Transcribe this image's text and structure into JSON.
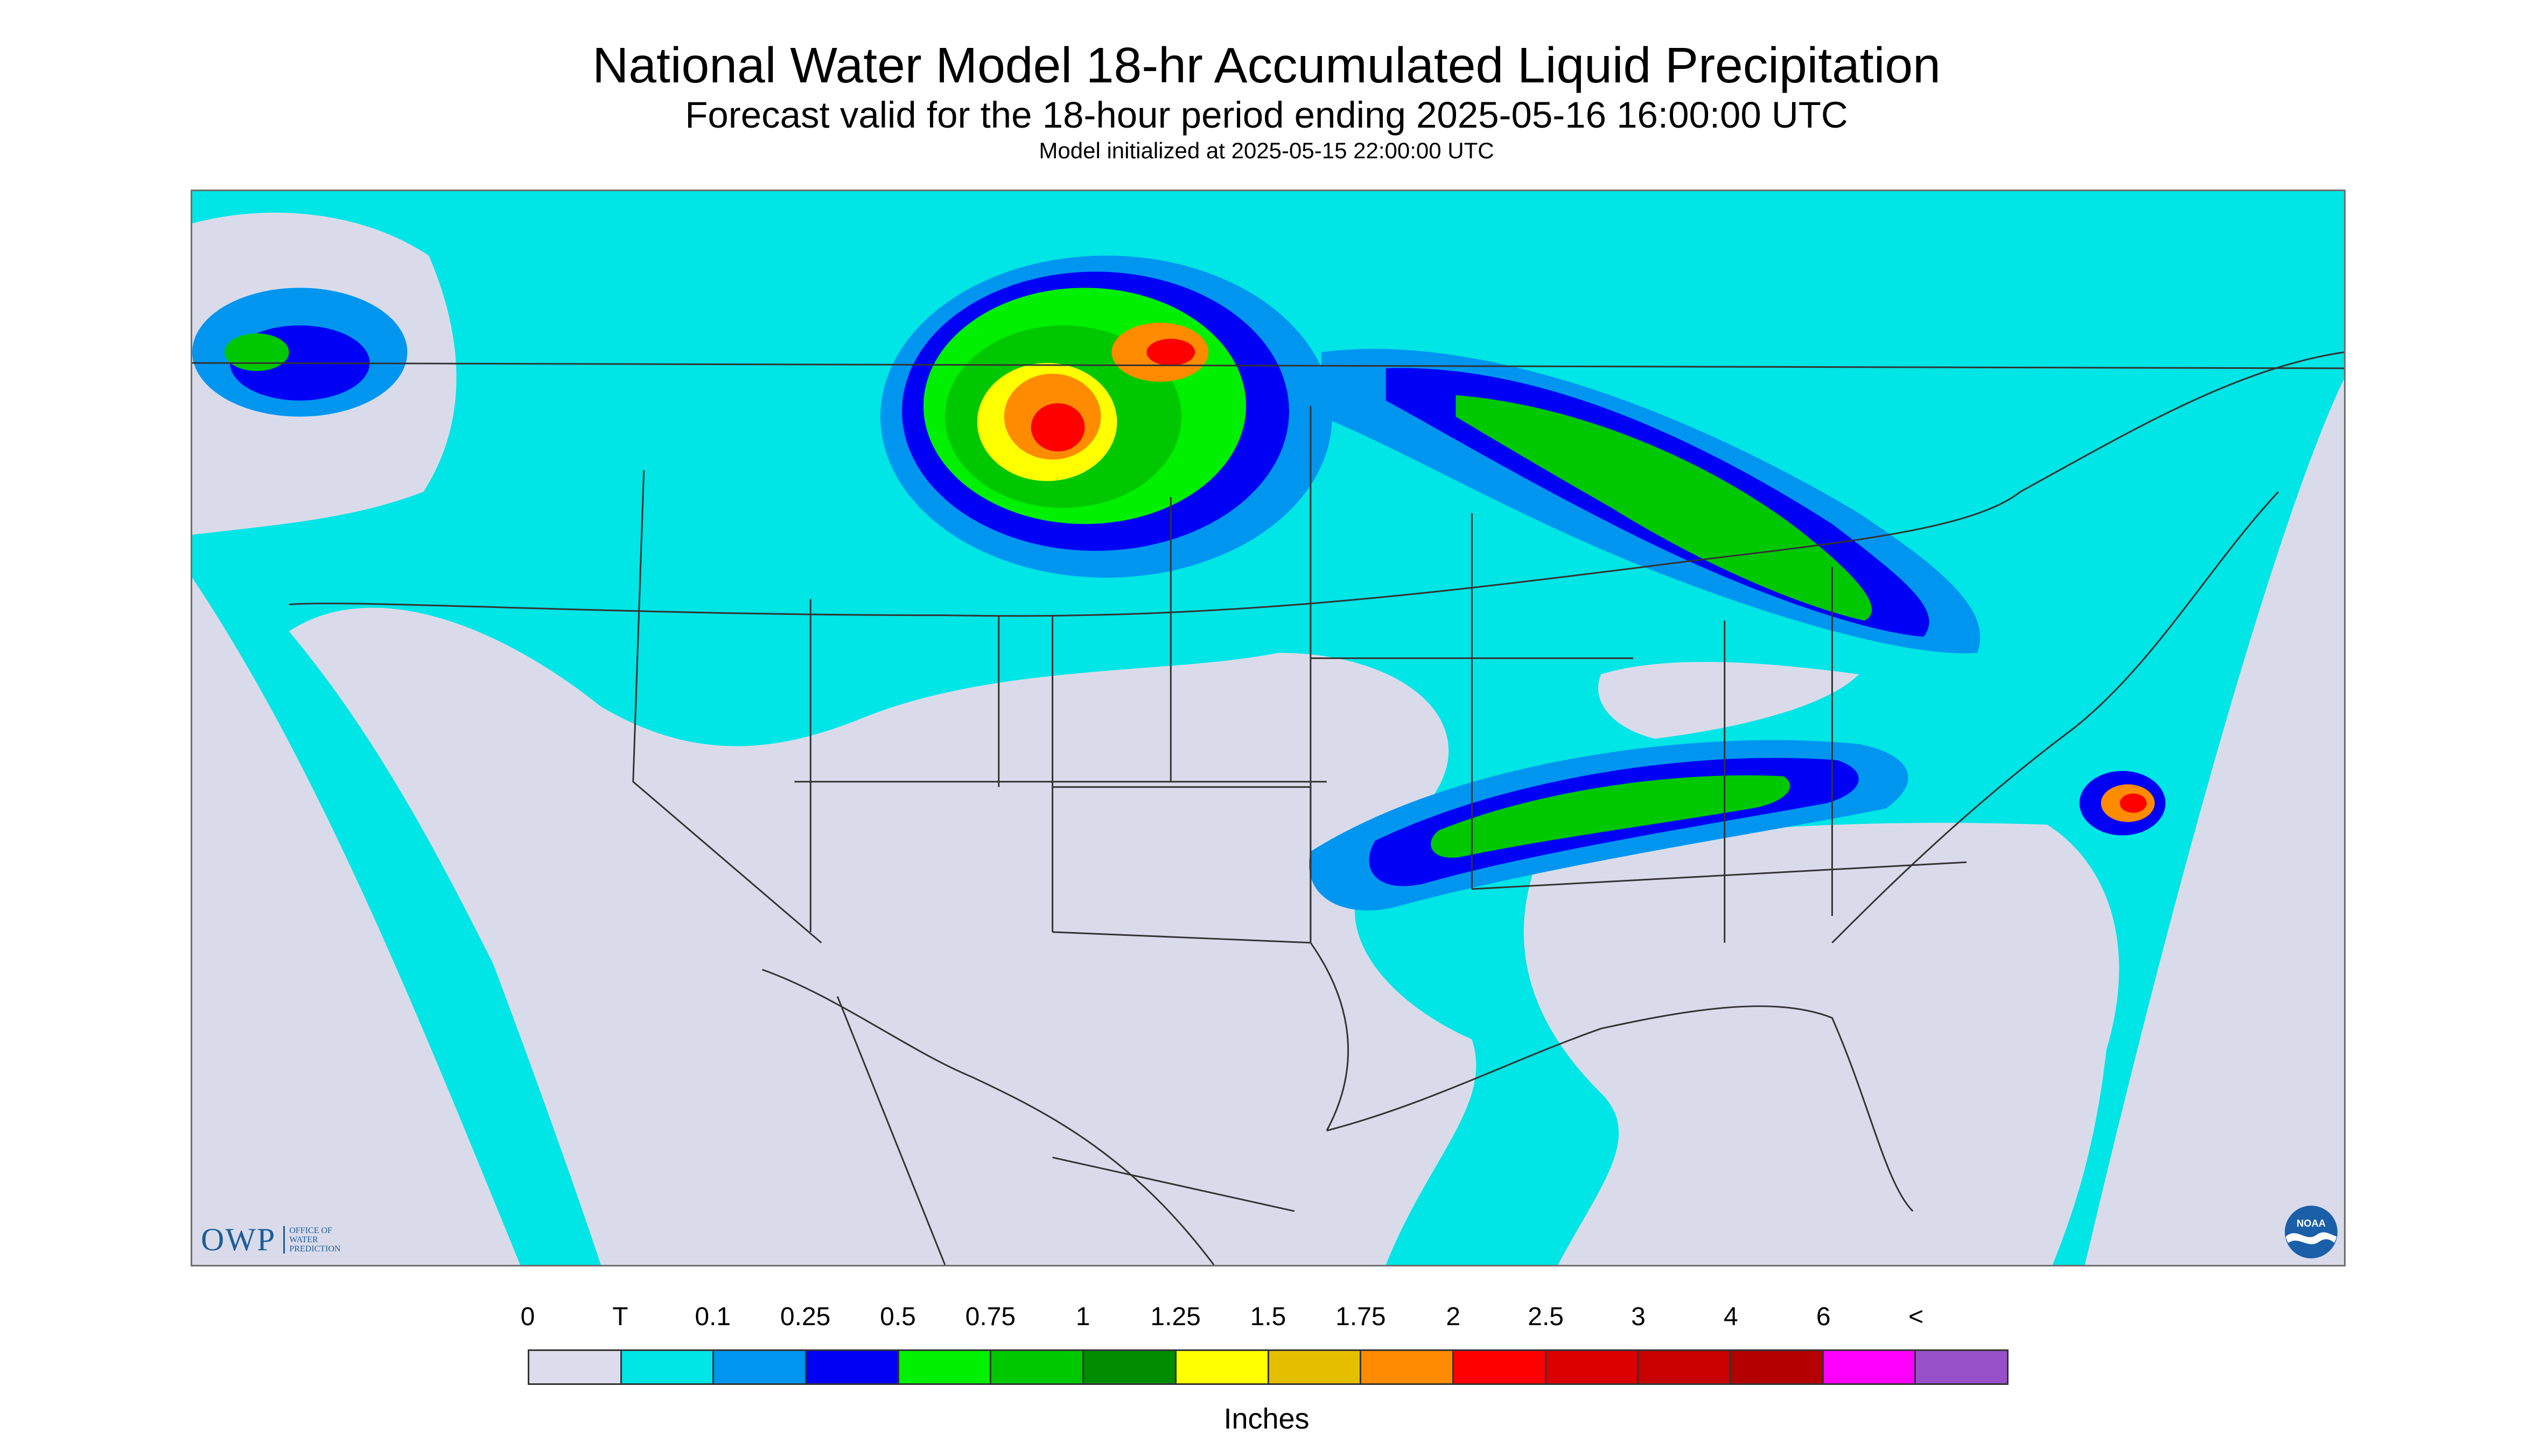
{
  "title": "National Water Model 18-hr Accumulated Liquid Precipitation",
  "subtitle": "Forecast valid for the 18-hour period ending 2025-05-16 16:00:00 UTC",
  "init_line": "Model initialized at 2025-05-15 22:00:00 UTC",
  "logos": {
    "owp_word": "OWP",
    "owp_lines": [
      "OFFICE OF",
      "WATER",
      "PREDICTION"
    ],
    "noaa_word": "NOAA"
  },
  "legend": {
    "labels": [
      "0",
      "T",
      "0.1",
      "0.25",
      "0.5",
      "0.75",
      "1",
      "1.25",
      "1.5",
      "1.75",
      "2",
      "2.5",
      "3",
      "4",
      "6",
      "<"
    ],
    "colors": [
      "#dcdcec",
      "#00e5e5",
      "#0096f0",
      "#0000f5",
      "#00f000",
      "#00c800",
      "#008c00",
      "#ffff00",
      "#e6be00",
      "#ff8c00",
      "#ff0000",
      "#dc0000",
      "#c80000",
      "#b40000",
      "#ff00ff",
      "#9650c8"
    ],
    "units": "Inches"
  }
}
